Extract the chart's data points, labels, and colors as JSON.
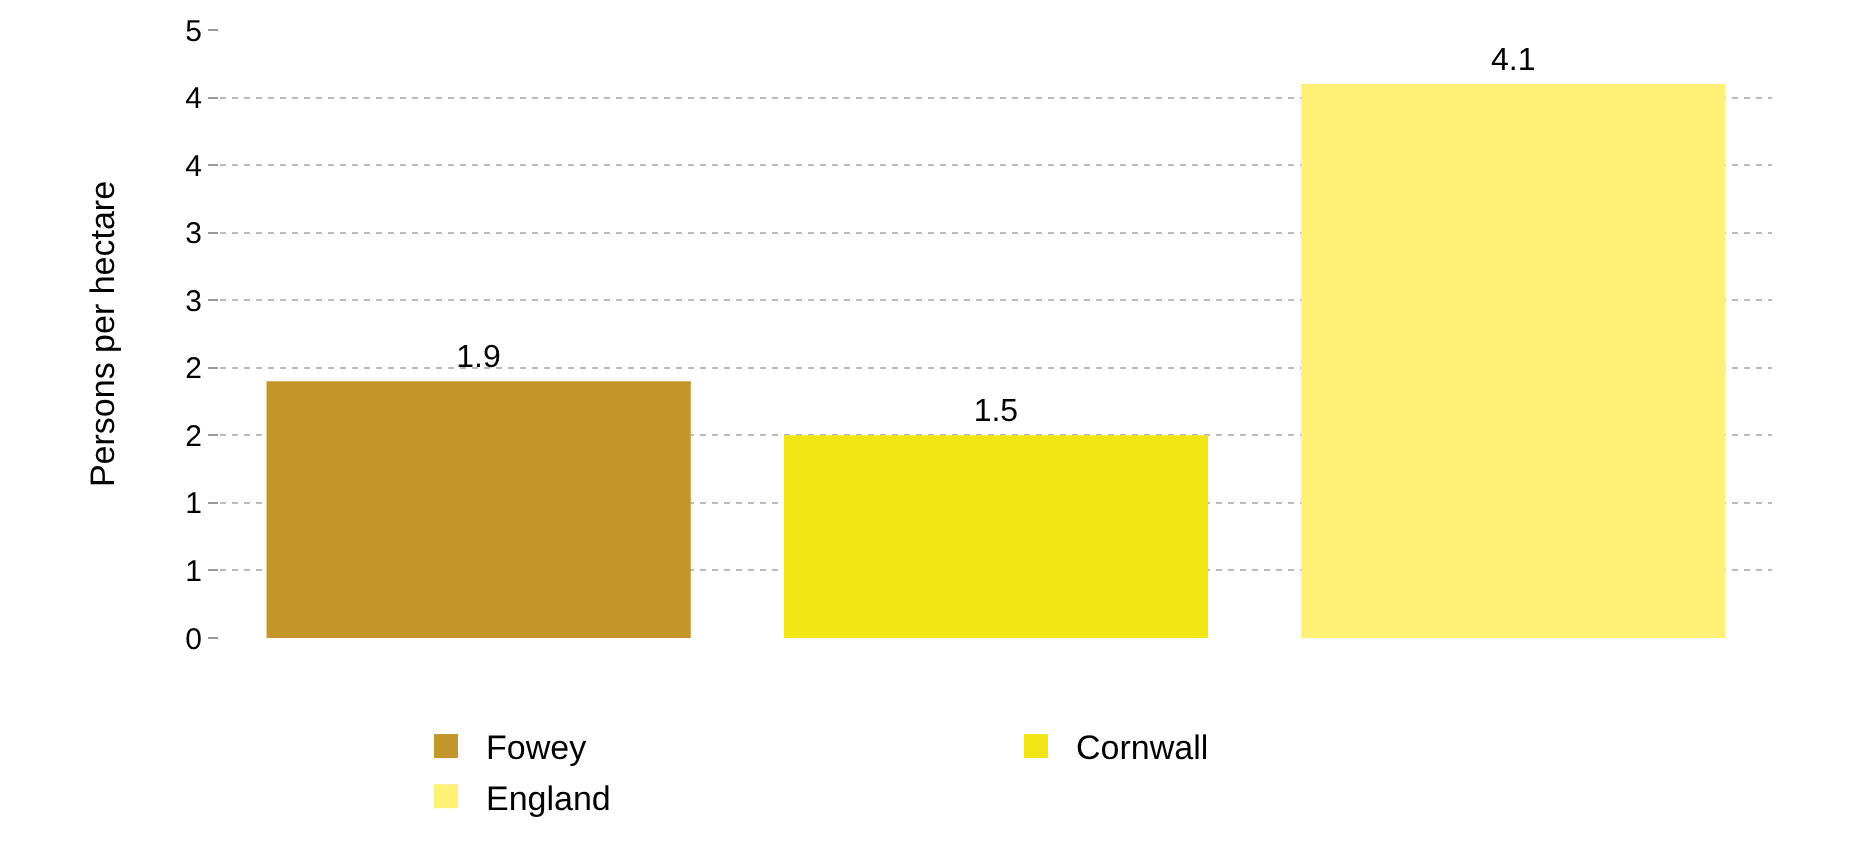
{
  "chart_data": {
    "type": "bar",
    "ylabel": "Persons per hectare",
    "categories": [
      null,
      null,
      null
    ],
    "series": [
      {
        "name": "Fowey",
        "color": "#c4952b",
        "values": [
          1.9,
          null,
          null
        ]
      },
      {
        "name": "Cornwall",
        "color": "#f2e617",
        "values": [
          null,
          1.5,
          null
        ]
      },
      {
        "name": "England",
        "color": "#fff176",
        "values": [
          null,
          null,
          4.1
        ]
      }
    ],
    "ylim": [
      0,
      4.5
    ],
    "yticks": [
      0,
      {
        "value": 0.5,
        "label": "1"
      },
      1,
      {
        "value": 1.5,
        "label": "2"
      },
      2,
      {
        "value": 2.5,
        "label": "3"
      },
      3,
      {
        "value": 3.5,
        "label": "4"
      },
      4,
      {
        "value": 4.5,
        "label": "5"
      }
    ],
    "grid": "y",
    "legend": "bottom",
    "data_labels": true
  }
}
